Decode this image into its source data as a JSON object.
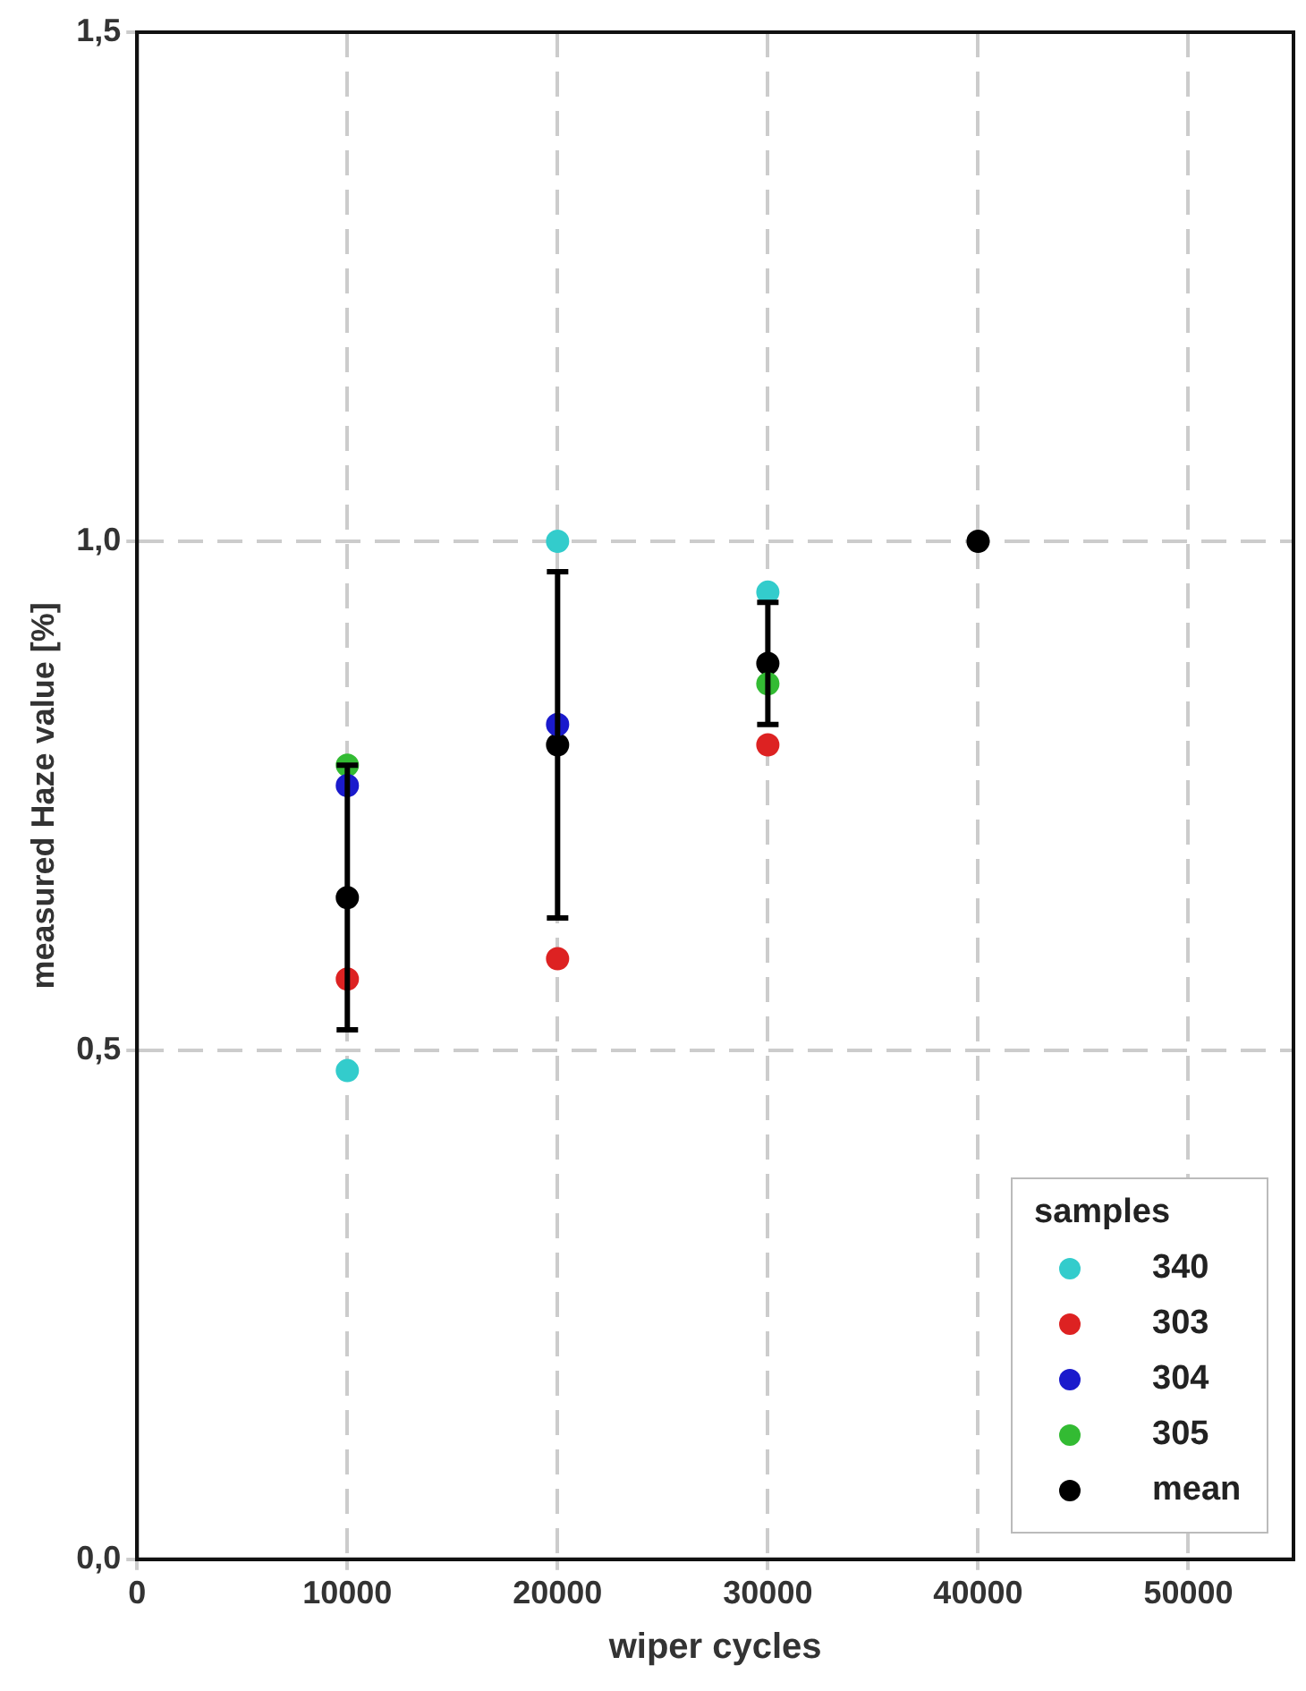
{
  "chart_data": {
    "type": "scatter",
    "xlabel": "wiper cycles",
    "ylabel": "measured Haze value [%]",
    "legend_title": "samples",
    "x": [
      10000,
      20000,
      30000,
      40000
    ],
    "series": [
      {
        "name": "340",
        "color": "#33cccc",
        "values": [
          0.48,
          1.0,
          0.95,
          null
        ]
      },
      {
        "name": "303",
        "color": "#dd2222",
        "values": [
          0.57,
          0.59,
          0.8,
          null
        ]
      },
      {
        "name": "304",
        "color": "#1a1acc",
        "values": [
          0.76,
          0.82,
          null,
          null
        ]
      },
      {
        "name": "305",
        "color": "#33bb33",
        "values": [
          0.78,
          null,
          0.86,
          null
        ]
      },
      {
        "name": "mean",
        "color": "#000000",
        "values": [
          0.65,
          0.8,
          0.88,
          1.0
        ],
        "errors": [
          [
            0.52,
            0.78
          ],
          [
            0.63,
            0.97
          ],
          [
            0.82,
            0.94
          ],
          null
        ]
      }
    ],
    "xlim": [
      0,
      55000
    ],
    "xticks": [
      0,
      10000,
      20000,
      30000,
      40000,
      50000
    ],
    "ylim": [
      0,
      1.5
    ],
    "yticks": [
      {
        "value": 0,
        "label": "0,0"
      },
      {
        "value": 0.5,
        "label": "0,5"
      },
      {
        "value": 1.0,
        "label": "1,0"
      },
      {
        "value": 1.5,
        "label": "1,5"
      }
    ],
    "grid": true,
    "legend": "bottom right",
    "marker": "circle"
  }
}
